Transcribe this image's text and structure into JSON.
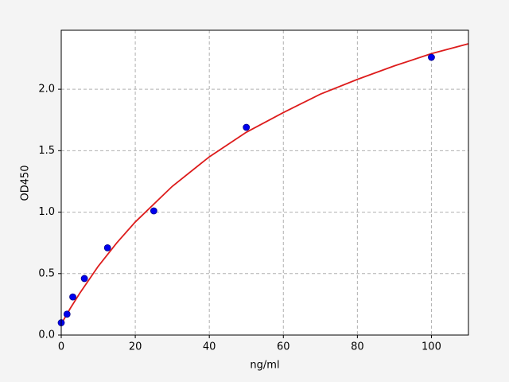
{
  "chart_data": {
    "type": "scatter",
    "xlabel": "ng/ml",
    "ylabel": "OD450",
    "xlim": [
      0,
      110
    ],
    "ylim": [
      0,
      2.48
    ],
    "xticks": [
      0,
      20,
      40,
      60,
      80,
      100
    ],
    "yticks": [
      {
        "value": 0,
        "label": "0.0"
      },
      0.5,
      {
        "value": 1,
        "label": "1.0"
      },
      1.5,
      {
        "value": 2,
        "label": "2.0"
      }
    ],
    "grid": true,
    "series": [
      {
        "type": "line",
        "color": "#dd1c1c",
        "x": [
          0,
          2.5,
          5,
          7.5,
          10,
          15,
          20,
          30,
          40,
          50,
          60,
          70,
          80,
          90,
          100,
          110
        ],
        "values": [
          0.09,
          0.22,
          0.34,
          0.45,
          0.56,
          0.75,
          0.92,
          1.21,
          1.45,
          1.65,
          1.81,
          1.96,
          2.08,
          2.19,
          2.29,
          2.37
        ]
      },
      {
        "type": "scatter",
        "color": "#0000ee",
        "x": [
          0,
          1.56,
          3.125,
          6.25,
          12.5,
          25,
          50,
          100
        ],
        "values": [
          0.1,
          0.17,
          0.31,
          0.46,
          0.71,
          1.01,
          1.69,
          2.26
        ]
      }
    ]
  }
}
